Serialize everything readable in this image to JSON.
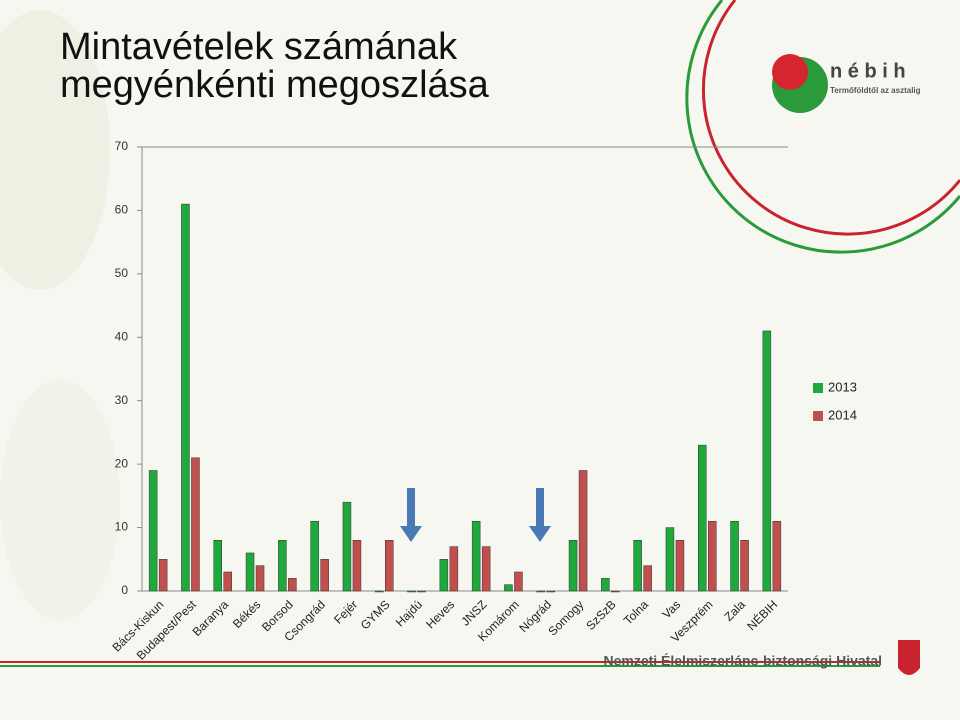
{
  "chart_data": {
    "type": "bar",
    "title": "Mintavételek számának megyénkénti megoszlása",
    "categories": [
      "Bács-Kiskun",
      "Budapest/Pest",
      "Baranya",
      "Békés",
      "Borsod",
      "Csongrád",
      "Fejér",
      "GYMS",
      "Hajdú",
      "Heves",
      "JNSZ",
      "Komárom",
      "Nógrád",
      "Somogy",
      "SzSzB",
      "Tolna",
      "Vas",
      "Veszprém",
      "Zala",
      "NÉBIH"
    ],
    "series": [
      {
        "name": "2013",
        "color": "#1fa83c",
        "values": [
          19,
          61,
          8,
          6,
          8,
          11,
          14,
          0,
          0,
          5,
          11,
          1,
          0,
          8,
          2,
          8,
          10,
          23,
          11,
          41
        ]
      },
      {
        "name": "2014",
        "color": "#c0504d",
        "values": [
          5,
          21,
          3,
          4,
          2,
          5,
          8,
          8,
          0,
          7,
          7,
          3,
          0,
          19,
          0,
          4,
          8,
          11,
          8,
          11
        ]
      }
    ],
    "ylim": [
      0,
      70
    ],
    "yticks": [
      0,
      10,
      20,
      30,
      40,
      50,
      60,
      70
    ],
    "grid": false,
    "legend": "right"
  },
  "logo": {
    "name": "n é b i h",
    "slogan": "Termőföldtől az asztalig"
  },
  "footer": "Nemzeti Élelmiszerlánc-biztonsági Hivatal"
}
